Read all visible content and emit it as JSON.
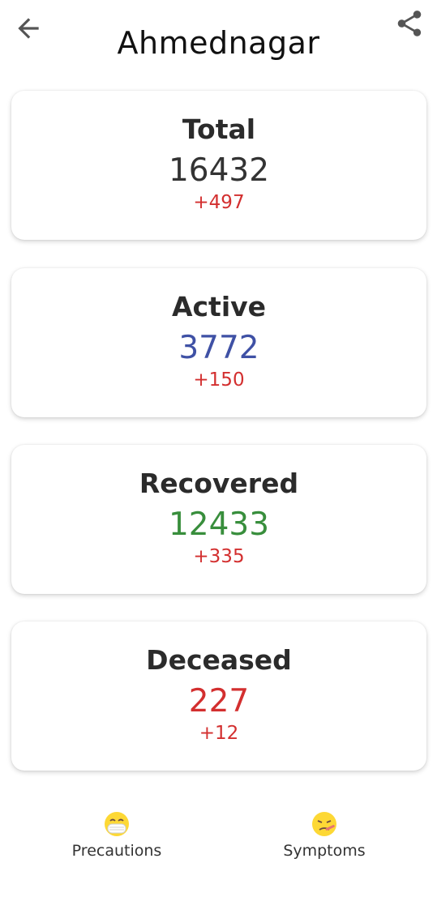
{
  "header": {
    "title": "Ahmednagar",
    "back_icon": "arrow-left-icon",
    "share_icon": "share-icon"
  },
  "colors": {
    "neutral": "#333333",
    "active": "#3f51a5",
    "recovered": "#388e3c",
    "deceased": "#d32f2f",
    "delta": "#d32f2f"
  },
  "cards": [
    {
      "label": "Total",
      "value": "16432",
      "delta": "+497"
    },
    {
      "label": "Active",
      "value": "3772",
      "delta": "+150"
    },
    {
      "label": "Recovered",
      "value": "12433",
      "delta": "+335"
    },
    {
      "label": "Deceased",
      "value": "227",
      "delta": "+12"
    }
  ],
  "nav": {
    "precautions": {
      "label": "Precautions",
      "icon": "mask-face-icon"
    },
    "symptoms": {
      "label": "Symptoms",
      "icon": "sick-face-icon"
    }
  }
}
